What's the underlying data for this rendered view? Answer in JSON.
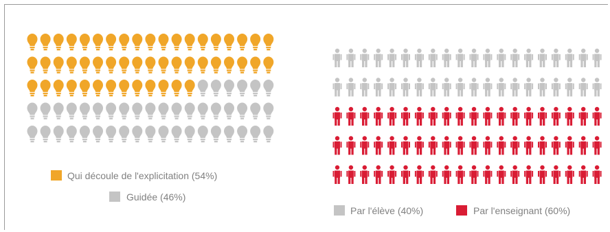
{
  "chart_data": [
    {
      "type": "pictograph",
      "icon": "lightbulb-icon",
      "rows": 5,
      "columns": 19,
      "series": [
        {
          "name": "Qui découle de l'explicitation (54%)",
          "percent": 54,
          "color": "#f0a629"
        },
        {
          "name": "Guidée (46%)",
          "percent": 46,
          "color": "#c4c4c4"
        }
      ],
      "legend": "bottom"
    },
    {
      "type": "pictograph",
      "icon": "person-icon",
      "rows": 5,
      "columns": 20,
      "series": [
        {
          "name": "Par l'élève (40%)",
          "percent": 40,
          "color": "#c4c4c4"
        },
        {
          "name": "Par l'enseignant (60%)",
          "percent": 60,
          "color": "#d91c34"
        }
      ],
      "legend": "bottom"
    }
  ]
}
